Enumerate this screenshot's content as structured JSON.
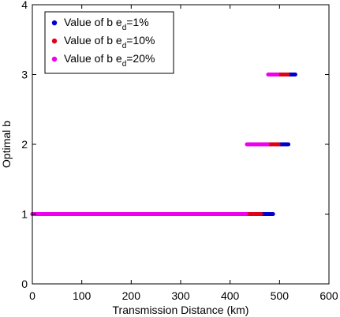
{
  "chart_data": {
    "type": "scatter",
    "xlabel": "Transmission Distance (km)",
    "ylabel": "Optimal b",
    "xlim": [
      0,
      600
    ],
    "ylim": [
      0,
      4
    ],
    "xticks": [
      "0",
      "100",
      "200",
      "300",
      "400",
      "500",
      "600"
    ],
    "yticks": [
      "0",
      "1",
      "2",
      "3",
      "4"
    ],
    "grid": false,
    "legend_position": "top-left",
    "series": [
      {
        "name": "Value of b  e_d=1%",
        "label_main": "Value of b  e",
        "label_sub": "d",
        "label_tail": "=1%",
        "color": "#0000cc",
        "segments": [
          {
            "y": 1,
            "x_start": 0,
            "x_end": 487
          },
          {
            "y": 2,
            "x_start": 488,
            "x_end": 518
          },
          {
            "y": 3,
            "x_start": 519,
            "x_end": 532
          }
        ]
      },
      {
        "name": "Value of b  e_d=10%",
        "label_main": "Value of b  e",
        "label_sub": "d",
        "label_tail": "=10%",
        "color": "#e0001a",
        "segments": [
          {
            "y": 1,
            "x_start": 0,
            "x_end": 463
          },
          {
            "y": 2,
            "x_start": 464,
            "x_end": 498
          },
          {
            "y": 3,
            "x_start": 499,
            "x_end": 517
          }
        ]
      },
      {
        "name": "Value of b  e_d=20%",
        "label_main": "Value of b  e",
        "label_sub": "d",
        "label_tail": "=20%",
        "color": "#ee00ee",
        "segments": [
          {
            "y": 1,
            "x_start": 0,
            "x_end": 433
          },
          {
            "y": 2,
            "x_start": 434,
            "x_end": 476
          },
          {
            "y": 3,
            "x_start": 477,
            "x_end": 496
          }
        ]
      }
    ]
  }
}
